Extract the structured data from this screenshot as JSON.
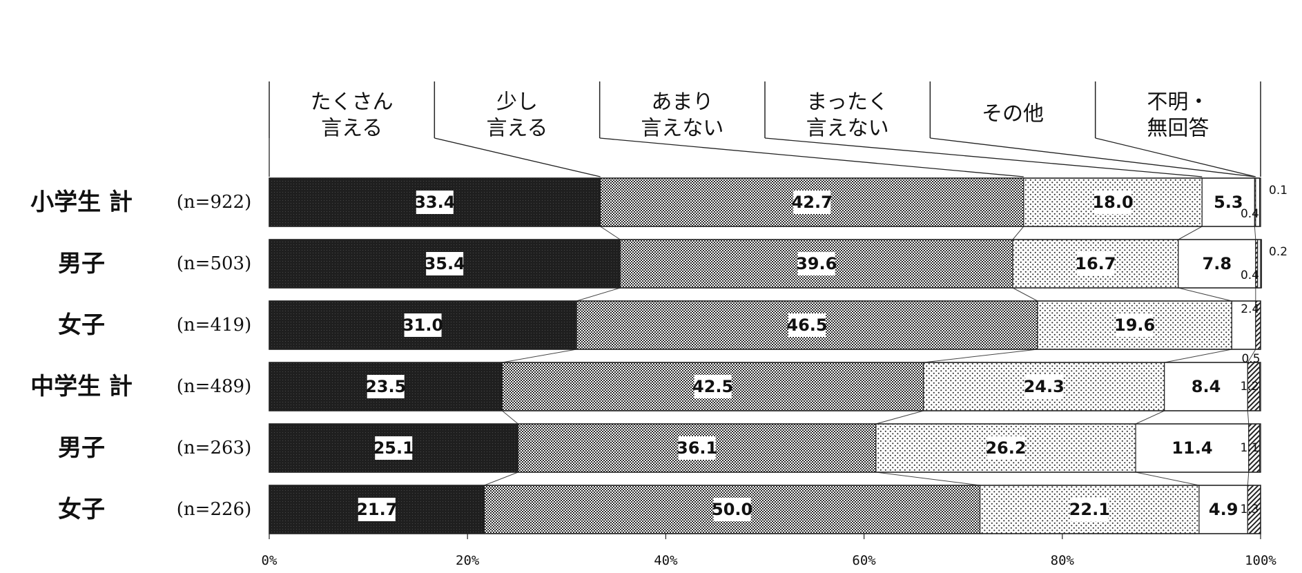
{
  "chart_data": {
    "type": "bar",
    "orientation": "horizontal",
    "stacked": true,
    "percent": true,
    "legend_position": "top",
    "xlim": [
      0,
      100
    ],
    "x_ticks": [
      "0%",
      "20%",
      "40%",
      "60%",
      "80%",
      "100%"
    ],
    "categories": [
      "小学生 計",
      "男子",
      "女子",
      "中学生 計",
      "男子",
      "女子"
    ],
    "n_labels": [
      "(n=922)",
      "(n=503)",
      "(n=419)",
      "(n=489)",
      "(n=263)",
      "(n=226)"
    ],
    "series": [
      {
        "name": "たくさん\n言える",
        "pattern": "dark",
        "values": [
          33.4,
          35.4,
          31.0,
          23.5,
          25.1,
          21.7
        ],
        "labels": [
          "33.4",
          "35.4",
          "31.0",
          "23.5",
          "25.1",
          "21.7"
        ]
      },
      {
        "name": "少し\n言える",
        "pattern": "checker",
        "values": [
          42.7,
          39.6,
          46.5,
          42.5,
          36.1,
          50.0
        ],
        "labels": [
          "42.7",
          "39.6",
          "46.5",
          "42.5",
          "36.1",
          "50.0"
        ]
      },
      {
        "name": "あまり\n言えない",
        "pattern": "dots",
        "values": [
          18.0,
          16.7,
          19.6,
          24.3,
          26.2,
          22.1
        ],
        "labels": [
          "18.0",
          "16.7",
          "19.6",
          "24.3",
          "26.2",
          "22.1"
        ]
      },
      {
        "name": "まったく\n言えない",
        "pattern": "white",
        "values": [
          5.3,
          7.8,
          2.4,
          8.4,
          11.4,
          4.9
        ],
        "labels": [
          "5.3",
          "7.8",
          "2.4",
          "8.4",
          "11.4",
          "4.9"
        ]
      },
      {
        "name": "その他",
        "pattern": "hatch",
        "values": [
          0.1,
          0.2,
          0.5,
          1.2,
          1.1,
          1.3
        ],
        "labels": [
          "0.1",
          "0.2",
          "0.5",
          "1.2",
          "1.1",
          "1.3"
        ]
      },
      {
        "name": "不明・\n無回答",
        "pattern": "white",
        "values": [
          0.4,
          0.4,
          0.0,
          0.0,
          0.0,
          0.0
        ],
        "labels": [
          "0.4",
          "0.4",
          "",
          "",
          "",
          ""
        ]
      }
    ]
  }
}
